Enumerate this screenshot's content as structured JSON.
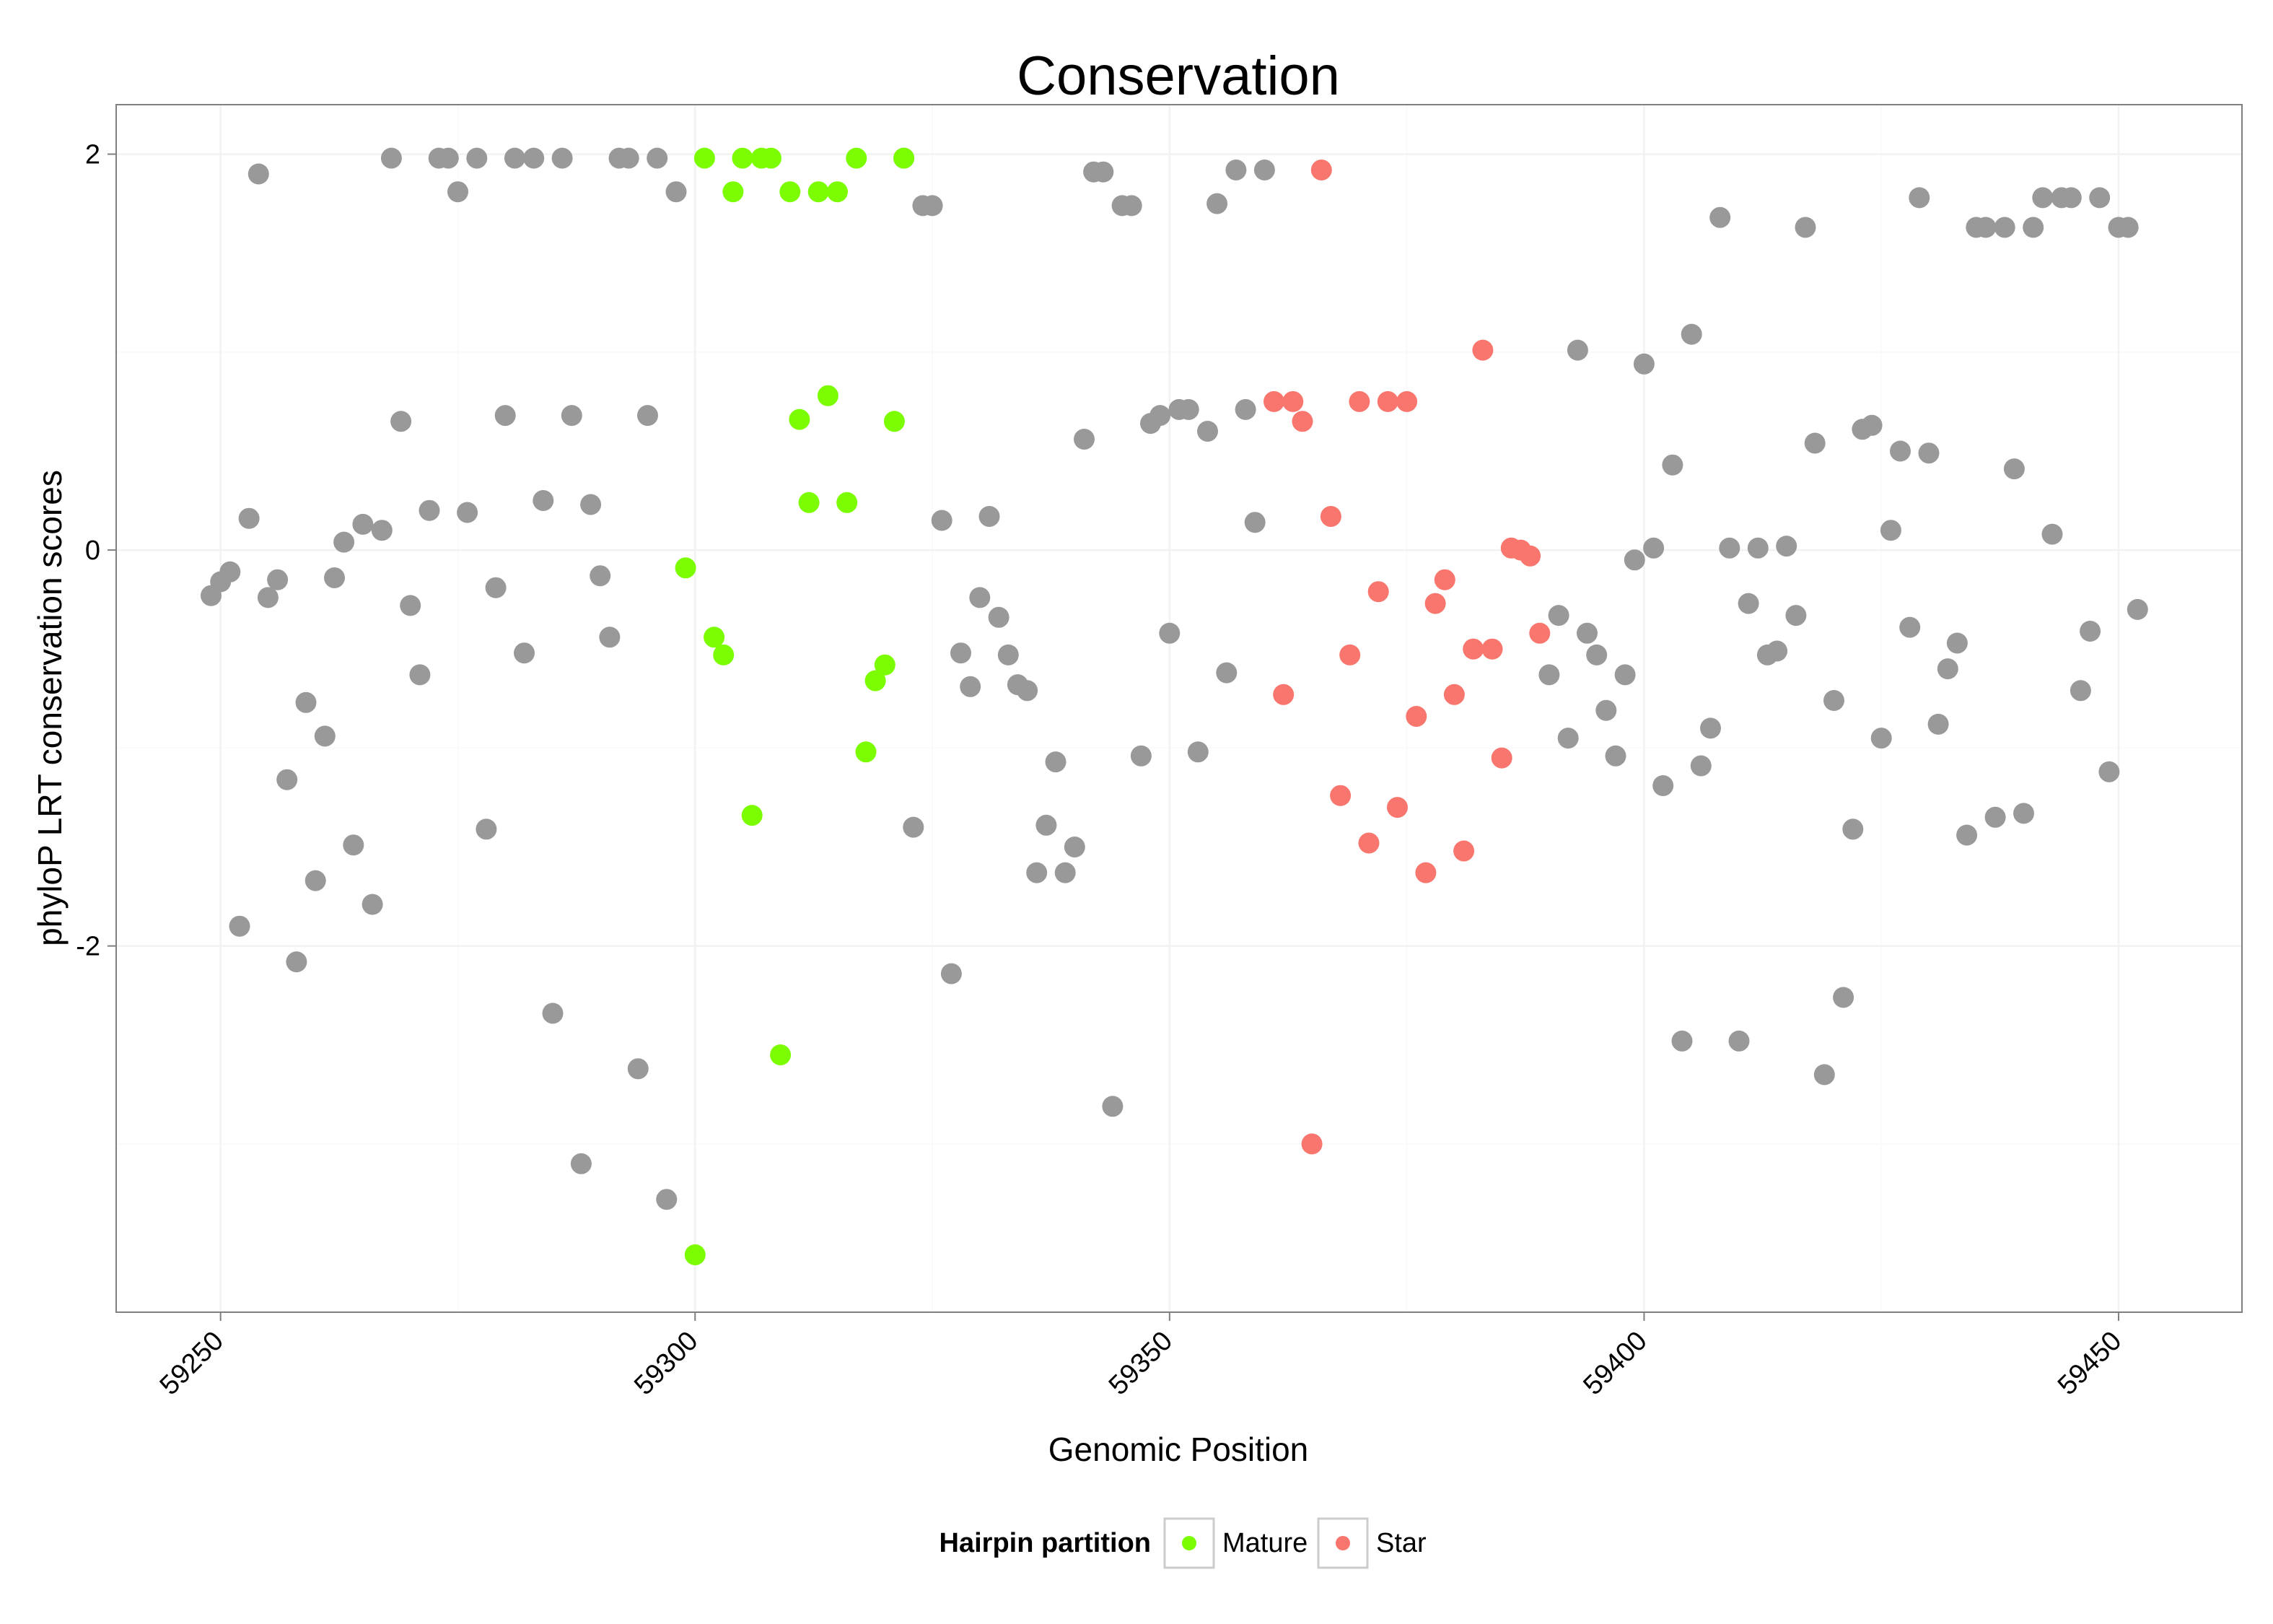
{
  "chart_data": {
    "type": "scatter",
    "title": "Conservation",
    "xlabel": "Genomic Position",
    "ylabel": "phyloP LRT conservation scores",
    "xlim": [
      59239,
      59463
    ],
    "ylim": [
      -3.85,
      2.25
    ],
    "x_ticks": [
      59250,
      59300,
      59350,
      59400,
      59450
    ],
    "x_tick_labels": [
      "59250",
      "59300",
      "59350",
      "59400",
      "59450"
    ],
    "y_ticks": [
      2,
      0,
      -2
    ],
    "y_tick_labels": [
      "2",
      "0",
      "-2"
    ],
    "grid": true,
    "legend": {
      "title": "Hairpin partition",
      "position": "bottom",
      "entries": [
        {
          "label": "Mature",
          "color": "#7CFC00"
        },
        {
          "label": "Star",
          "color": "#F8766D"
        }
      ]
    },
    "other_color": "#999999",
    "series": [
      {
        "key": "other",
        "color": "#999999",
        "points": [
          [
            59249,
            -0.23
          ],
          [
            59250,
            -0.16
          ],
          [
            59251,
            -0.11
          ],
          [
            59252,
            -1.9
          ],
          [
            59253,
            0.16
          ],
          [
            59254,
            1.9
          ],
          [
            59255,
            -0.24
          ],
          [
            59256,
            -0.15
          ],
          [
            59257,
            -1.16
          ],
          [
            59258,
            -2.08
          ],
          [
            59259,
            -0.77
          ],
          [
            59260,
            -1.67
          ],
          [
            59261,
            -0.94
          ],
          [
            59262,
            -0.14
          ],
          [
            59263,
            0.04
          ],
          [
            59264,
            -1.49
          ],
          [
            59265,
            0.13
          ],
          [
            59266,
            -1.79
          ],
          [
            59267,
            0.1
          ],
          [
            59268,
            1.98
          ],
          [
            59269,
            0.65
          ],
          [
            59270,
            -0.28
          ],
          [
            59271,
            -0.63
          ],
          [
            59272,
            0.2
          ],
          [
            59273,
            1.98
          ],
          [
            59274,
            1.98
          ],
          [
            59275,
            1.81
          ],
          [
            59276,
            0.19
          ],
          [
            59277,
            1.98
          ],
          [
            59278,
            -1.41
          ],
          [
            59279,
            -0.19
          ],
          [
            59280,
            0.68
          ],
          [
            59281,
            1.98
          ],
          [
            59282,
            -0.52
          ],
          [
            59283,
            1.98
          ],
          [
            59284,
            0.25
          ],
          [
            59285,
            -2.34
          ],
          [
            59286,
            1.98
          ],
          [
            59287,
            0.68
          ],
          [
            59288,
            -3.1
          ],
          [
            59289,
            0.23
          ],
          [
            59290,
            -0.13
          ],
          [
            59291,
            -0.44
          ],
          [
            59292,
            1.98
          ],
          [
            59293,
            1.98
          ],
          [
            59294,
            -2.62
          ],
          [
            59295,
            0.68
          ],
          [
            59296,
            1.98
          ],
          [
            59297,
            -3.28
          ],
          [
            59298,
            1.81
          ],
          [
            59322,
            1.98
          ],
          [
            59323,
            -1.4
          ],
          [
            59324,
            1.74
          ],
          [
            59325,
            1.74
          ],
          [
            59326,
            0.15
          ],
          [
            59327,
            -2.14
          ],
          [
            59328,
            -0.52
          ],
          [
            59329,
            -0.69
          ],
          [
            59330,
            -0.24
          ],
          [
            59331,
            0.17
          ],
          [
            59332,
            -0.34
          ],
          [
            59333,
            -0.53
          ],
          [
            59334,
            -0.68
          ],
          [
            59335,
            -0.71
          ],
          [
            59336,
            -1.63
          ],
          [
            59337,
            -1.39
          ],
          [
            59338,
            -1.07
          ],
          [
            59339,
            -1.63
          ],
          [
            59340,
            -1.5
          ],
          [
            59341,
            0.56
          ],
          [
            59342,
            1.91
          ],
          [
            59343,
            1.91
          ],
          [
            59344,
            -2.81
          ],
          [
            59345,
            1.74
          ],
          [
            59346,
            1.74
          ],
          [
            59347,
            -1.04
          ],
          [
            59348,
            0.64
          ],
          [
            59349,
            0.68
          ],
          [
            59350,
            -0.42
          ],
          [
            59351,
            0.71
          ],
          [
            59352,
            0.71
          ],
          [
            59353,
            -1.02
          ],
          [
            59354,
            0.6
          ],
          [
            59355,
            1.75
          ],
          [
            59356,
            -0.62
          ],
          [
            59357,
            1.92
          ],
          [
            59358,
            0.71
          ],
          [
            59359,
            0.14
          ],
          [
            59360,
            1.92
          ],
          [
            59390,
            -0.63
          ],
          [
            59391,
            -0.33
          ],
          [
            59392,
            -0.95
          ],
          [
            59393,
            1.01
          ],
          [
            59394,
            -0.42
          ],
          [
            59395,
            -0.53
          ],
          [
            59396,
            -0.81
          ],
          [
            59397,
            -1.04
          ],
          [
            59398,
            -0.63
          ],
          [
            59399,
            -0.05
          ],
          [
            59400,
            0.94
          ],
          [
            59401,
            0.01
          ],
          [
            59402,
            -1.19
          ],
          [
            59403,
            0.43
          ],
          [
            59404,
            -2.48
          ],
          [
            59405,
            1.09
          ],
          [
            59406,
            -1.09
          ],
          [
            59407,
            -0.9
          ],
          [
            59408,
            1.68
          ],
          [
            59409,
            0.01
          ],
          [
            59410,
            -2.48
          ],
          [
            59411,
            -0.27
          ],
          [
            59412,
            0.01
          ],
          [
            59413,
            -0.53
          ],
          [
            59414,
            -0.51
          ],
          [
            59415,
            0.02
          ],
          [
            59416,
            -0.33
          ],
          [
            59417,
            1.63
          ],
          [
            59418,
            0.54
          ],
          [
            59419,
            -2.65
          ],
          [
            59420,
            -0.76
          ],
          [
            59421,
            -2.26
          ],
          [
            59422,
            -1.41
          ],
          [
            59423,
            0.61
          ],
          [
            59424,
            0.63
          ],
          [
            59425,
            -0.95
          ],
          [
            59426,
            0.1
          ],
          [
            59427,
            0.5
          ],
          [
            59428,
            -0.39
          ],
          [
            59429,
            1.78
          ],
          [
            59430,
            0.49
          ],
          [
            59431,
            -0.88
          ],
          [
            59432,
            -0.6
          ],
          [
            59433,
            -0.47
          ],
          [
            59434,
            -1.44
          ],
          [
            59435,
            1.63
          ],
          [
            59436,
            1.63
          ],
          [
            59437,
            -1.35
          ],
          [
            59438,
            1.63
          ],
          [
            59439,
            0.41
          ],
          [
            59440,
            -1.33
          ],
          [
            59441,
            1.63
          ],
          [
            59442,
            1.78
          ],
          [
            59443,
            0.08
          ],
          [
            59444,
            1.78
          ],
          [
            59445,
            1.78
          ],
          [
            59446,
            -0.71
          ],
          [
            59447,
            -0.41
          ],
          [
            59448,
            1.78
          ],
          [
            59449,
            -1.12
          ],
          [
            59450,
            1.63
          ],
          [
            59451,
            1.63
          ],
          [
            59452,
            -0.3
          ]
        ]
      },
      {
        "key": "mature",
        "name": "Mature",
        "color": "#7CFC00",
        "points": [
          [
            59299,
            -0.09
          ],
          [
            59300,
            -3.56
          ],
          [
            59301,
            1.98
          ],
          [
            59302,
            -0.44
          ],
          [
            59303,
            -0.53
          ],
          [
            59304,
            1.81
          ],
          [
            59305,
            1.98
          ],
          [
            59306,
            -1.34
          ],
          [
            59307,
            1.98
          ],
          [
            59308,
            1.98
          ],
          [
            59309,
            -2.55
          ],
          [
            59310,
            1.81
          ],
          [
            59311,
            0.66
          ],
          [
            59312,
            0.24
          ],
          [
            59313,
            1.81
          ],
          [
            59314,
            0.78
          ],
          [
            59315,
            1.81
          ],
          [
            59316,
            0.24
          ],
          [
            59317,
            1.98
          ],
          [
            59318,
            -1.02
          ],
          [
            59319,
            -0.66
          ],
          [
            59320,
            -0.58
          ],
          [
            59321,
            0.65
          ],
          [
            59322,
            1.98
          ]
        ]
      },
      {
        "key": "star",
        "name": "Star",
        "color": "#F8766D",
        "points": [
          [
            59361,
            0.75
          ],
          [
            59362,
            -0.73
          ],
          [
            59363,
            0.75
          ],
          [
            59364,
            0.65
          ],
          [
            59365,
            -3.0
          ],
          [
            59366,
            1.92
          ],
          [
            59367,
            0.17
          ],
          [
            59368,
            -1.24
          ],
          [
            59369,
            -0.53
          ],
          [
            59370,
            0.75
          ],
          [
            59371,
            -1.48
          ],
          [
            59372,
            -0.21
          ],
          [
            59373,
            0.75
          ],
          [
            59374,
            -1.3
          ],
          [
            59375,
            0.75
          ],
          [
            59376,
            -0.84
          ],
          [
            59377,
            -1.63
          ],
          [
            59378,
            -0.27
          ],
          [
            59379,
            -0.15
          ],
          [
            59380,
            -0.73
          ],
          [
            59381,
            -1.52
          ],
          [
            59382,
            -0.5
          ],
          [
            59383,
            1.01
          ],
          [
            59384,
            -0.5
          ],
          [
            59385,
            -1.05
          ],
          [
            59386,
            0.01
          ],
          [
            59387,
            0.0
          ],
          [
            59388,
            -0.03
          ],
          [
            59389,
            -0.42
          ]
        ]
      }
    ]
  }
}
